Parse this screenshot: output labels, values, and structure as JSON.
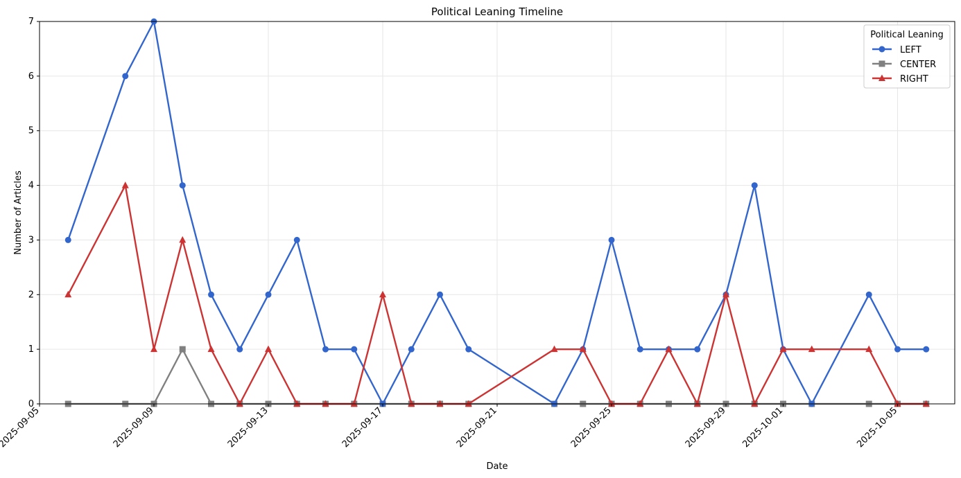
{
  "chart_data": {
    "type": "line",
    "title": "Political Leaning Timeline",
    "xlabel": "Date",
    "ylabel": "Number of Articles",
    "xlim": [
      "2025-09-05",
      "2025-10-07"
    ],
    "ylim": [
      0,
      7
    ],
    "x_ticks": [
      "2025-09-05",
      "2025-09-09",
      "2025-09-13",
      "2025-09-17",
      "2025-09-21",
      "2025-09-25",
      "2025-09-29",
      "2025-10-01",
      "2025-10-05"
    ],
    "y_ticks": [
      0,
      1,
      2,
      3,
      4,
      5,
      6,
      7
    ],
    "grid": true,
    "legend": {
      "title": "Political Leaning",
      "placement": "top-right"
    },
    "series": [
      {
        "name": "LEFT",
        "color": "#3366cc",
        "marker": "circle",
        "points": [
          [
            "2025-09-06",
            3
          ],
          [
            "2025-09-08",
            6
          ],
          [
            "2025-09-09",
            7
          ],
          [
            "2025-09-10",
            4
          ],
          [
            "2025-09-11",
            2
          ],
          [
            "2025-09-12",
            1
          ],
          [
            "2025-09-13",
            2
          ],
          [
            "2025-09-14",
            3
          ],
          [
            "2025-09-15",
            1
          ],
          [
            "2025-09-16",
            1
          ],
          [
            "2025-09-17",
            0
          ],
          [
            "2025-09-18",
            1
          ],
          [
            "2025-09-19",
            2
          ],
          [
            "2025-09-20",
            1
          ],
          [
            "2025-09-23",
            0
          ],
          [
            "2025-09-24",
            1
          ],
          [
            "2025-09-25",
            3
          ],
          [
            "2025-09-26",
            1
          ],
          [
            "2025-09-27",
            1
          ],
          [
            "2025-09-28",
            1
          ],
          [
            "2025-09-29",
            2
          ],
          [
            "2025-09-30",
            4
          ],
          [
            "2025-10-01",
            1
          ],
          [
            "2025-10-02",
            0
          ],
          [
            "2025-10-04",
            2
          ],
          [
            "2025-10-05",
            1
          ],
          [
            "2025-10-06",
            1
          ]
        ]
      },
      {
        "name": "CENTER",
        "color": "#808080",
        "marker": "square",
        "points": [
          [
            "2025-09-06",
            0
          ],
          [
            "2025-09-08",
            0
          ],
          [
            "2025-09-09",
            0
          ],
          [
            "2025-09-10",
            1
          ],
          [
            "2025-09-11",
            0
          ],
          [
            "2025-09-12",
            0
          ],
          [
            "2025-09-13",
            0
          ],
          [
            "2025-09-14",
            0
          ],
          [
            "2025-09-15",
            0
          ],
          [
            "2025-09-16",
            0
          ],
          [
            "2025-09-17",
            0
          ],
          [
            "2025-09-18",
            0
          ],
          [
            "2025-09-19",
            0
          ],
          [
            "2025-09-20",
            0
          ],
          [
            "2025-09-23",
            0
          ],
          [
            "2025-09-24",
            0
          ],
          [
            "2025-09-25",
            0
          ],
          [
            "2025-09-26",
            0
          ],
          [
            "2025-09-27",
            0
          ],
          [
            "2025-09-28",
            0
          ],
          [
            "2025-09-29",
            0
          ],
          [
            "2025-09-30",
            0
          ],
          [
            "2025-10-01",
            0
          ],
          [
            "2025-10-02",
            0
          ],
          [
            "2025-10-04",
            0
          ],
          [
            "2025-10-05",
            0
          ],
          [
            "2025-10-06",
            0
          ]
        ]
      },
      {
        "name": "RIGHT",
        "color": "#cc3333",
        "marker": "triangle",
        "points": [
          [
            "2025-09-06",
            2
          ],
          [
            "2025-09-08",
            4
          ],
          [
            "2025-09-09",
            1
          ],
          [
            "2025-09-10",
            3
          ],
          [
            "2025-09-11",
            1
          ],
          [
            "2025-09-12",
            0
          ],
          [
            "2025-09-13",
            1
          ],
          [
            "2025-09-14",
            0
          ],
          [
            "2025-09-15",
            0
          ],
          [
            "2025-09-16",
            0
          ],
          [
            "2025-09-17",
            2
          ],
          [
            "2025-09-18",
            0
          ],
          [
            "2025-09-19",
            0
          ],
          [
            "2025-09-20",
            0
          ],
          [
            "2025-09-23",
            1
          ],
          [
            "2025-09-24",
            1
          ],
          [
            "2025-09-25",
            0
          ],
          [
            "2025-09-26",
            0
          ],
          [
            "2025-09-27",
            1
          ],
          [
            "2025-09-28",
            0
          ],
          [
            "2025-09-29",
            2
          ],
          [
            "2025-09-30",
            0
          ],
          [
            "2025-10-01",
            1
          ],
          [
            "2025-10-02",
            1
          ],
          [
            "2025-10-04",
            1
          ],
          [
            "2025-10-05",
            0
          ],
          [
            "2025-10-06",
            0
          ]
        ]
      }
    ]
  }
}
